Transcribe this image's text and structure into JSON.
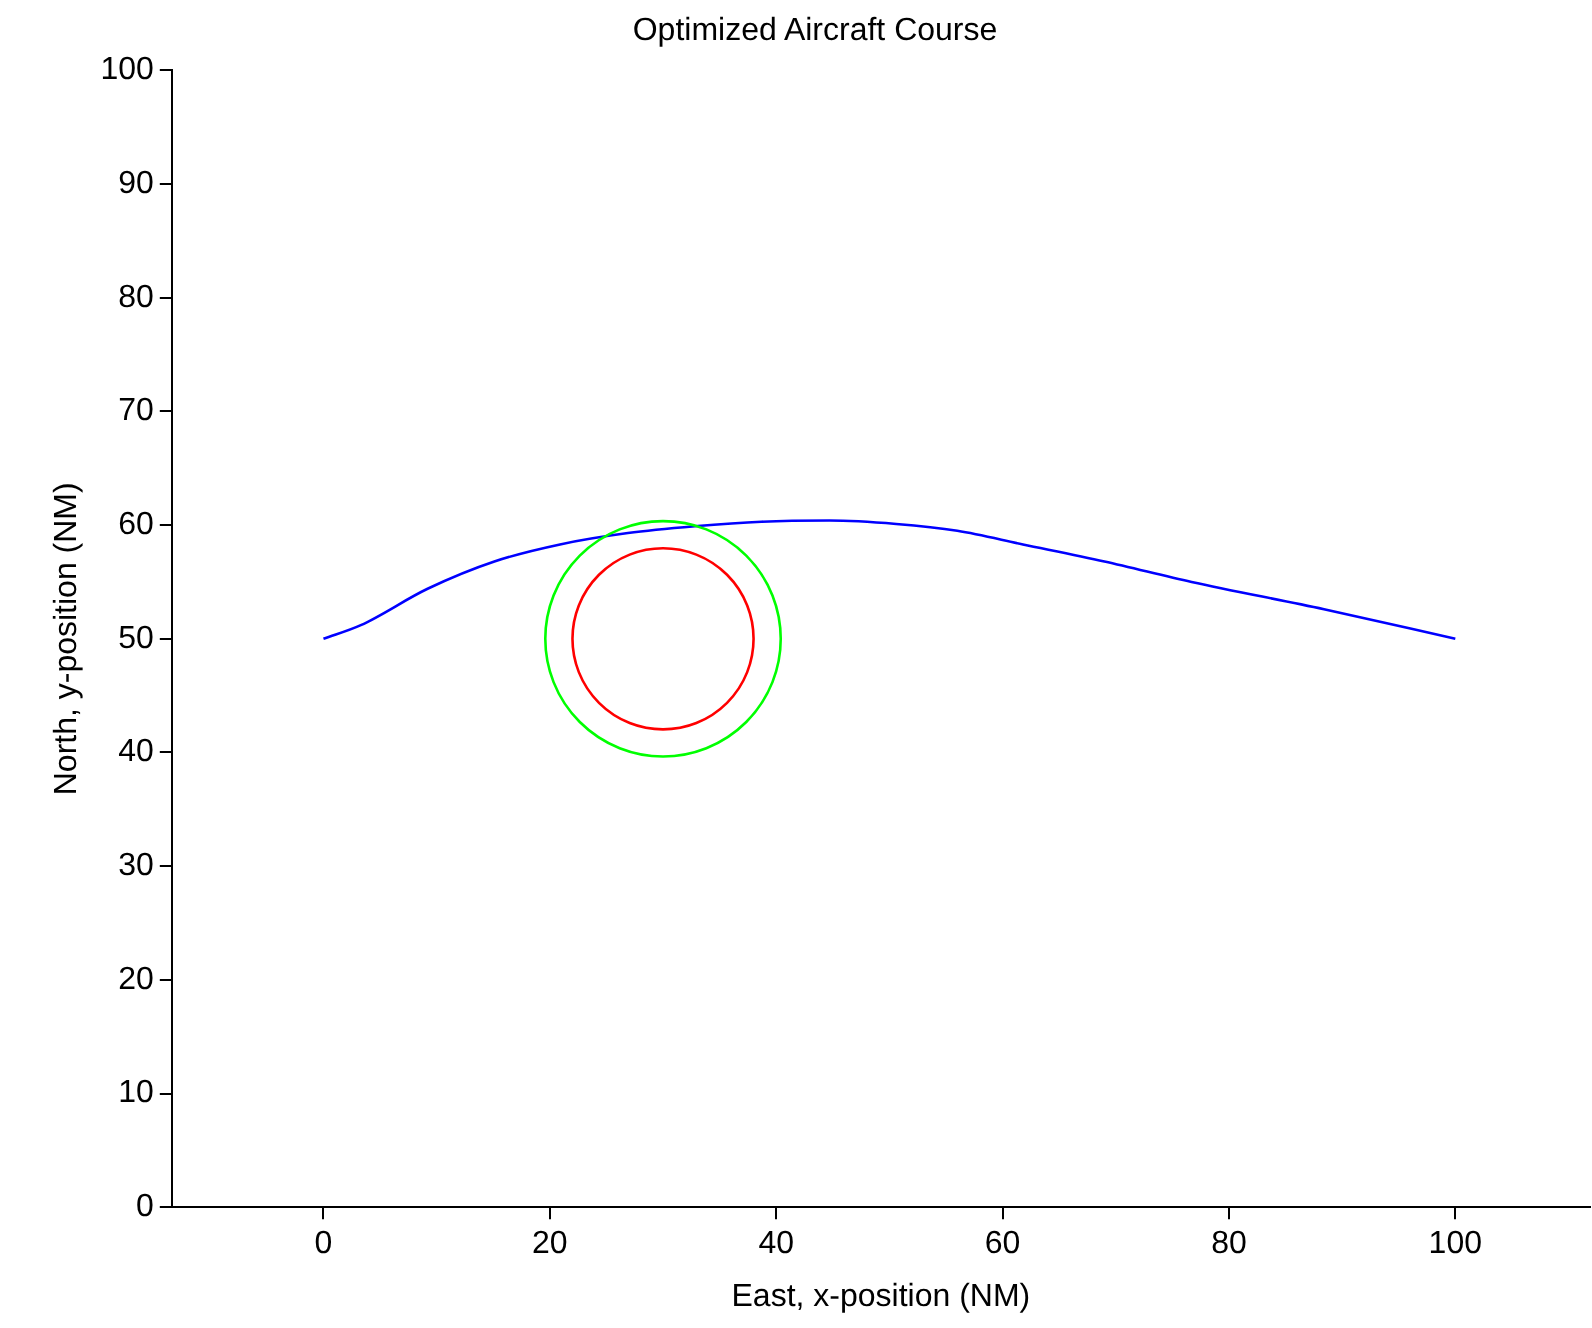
{
  "chart_data": {
    "type": "line",
    "title": "Optimized Aircraft Course",
    "xlabel": "East, x-position (NM)",
    "ylabel": "North, y-position (NM)",
    "xlim": [
      -13.4,
      111.9
    ],
    "ylim": [
      0,
      100
    ],
    "xticks": [
      0,
      20,
      40,
      60,
      80,
      100
    ],
    "yticks": [
      0,
      10,
      20,
      30,
      40,
      50,
      60,
      70,
      80,
      90,
      100
    ],
    "grid": false,
    "legend": false,
    "marker": "none",
    "line_style": "solid",
    "series": [
      {
        "color": "#0000ff",
        "x": [
          0,
          3.3,
          9.2,
          15.1,
          20.9,
          26.9,
          32.8,
          38.7,
          44.7,
          50.6,
          56,
          61.8,
          69,
          76.7,
          88.4,
          100
        ],
        "values": [
          50,
          51.2,
          54.4,
          56.8,
          58.3,
          59.3,
          59.9,
          60.3,
          60.4,
          60.1,
          59.5,
          58.3,
          56.8,
          55,
          52.6,
          50
        ]
      }
    ]
  }
}
